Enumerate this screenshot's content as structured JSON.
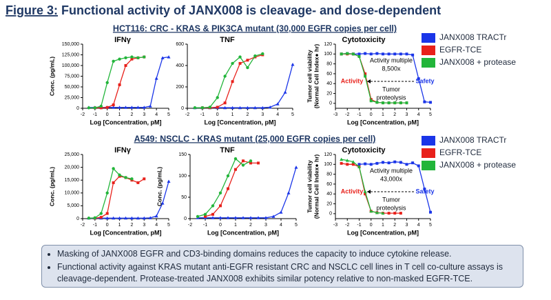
{
  "header": {
    "label": "Figure 3:",
    "title": "Functional activity of JANX008 is cleavage- and dose-dependent"
  },
  "sections": [
    "HCT116: CRC - KRAS & PIK3CA mutant (30,000 EGFR copies per cell)",
    "A549: NSCLC - KRAS mutant (25,000 EGFR copies per cell)"
  ],
  "bullets": [
    "Masking of JANX008 EGFR and CD3-binding domains reduces the capacity to induce cytokine release.",
    "Functional activity against KRAS mutant anti-EGFR resistant CRC and NSCLC cell lines in T cell co-culture assays is cleavage-dependent. Protease-treated JANX008 exhibits similar potency relative to non-masked EGFR-TCE."
  ],
  "chart_data": [
    {
      "type": "line",
      "title": "IFNγ",
      "xlabel": "Log [Concentration, pM]",
      "ylabel": [
        "Conc. (pg/mL)"
      ],
      "xlim": [
        -2,
        5
      ],
      "xticks": [
        -2,
        -1,
        0,
        1,
        2,
        3,
        4,
        5
      ],
      "ylim": [
        0,
        150000
      ],
      "yticks": [
        0,
        {
          "value": 25000,
          "label": "25,000"
        },
        {
          "value": 50000,
          "label": "50,000"
        },
        {
          "value": 75000,
          "label": "75,000"
        },
        {
          "value": 100000,
          "label": "100,000"
        },
        {
          "value": 125000,
          "label": "125,000"
        },
        {
          "value": 150000,
          "label": "150,000"
        }
      ],
      "x": [
        -1.5,
        -1,
        -0.5,
        0,
        0.5,
        1,
        1.5,
        2,
        2.5,
        3,
        3.5,
        4,
        4.5,
        5
      ],
      "series": [
        {
          "color": "#1a35e8",
          "marker": "triangle",
          "values": [
            2000,
            2000,
            2000,
            2000,
            2000,
            2000,
            2000,
            2000,
            2000,
            2000,
            5000,
            70000,
            118000,
            120000
          ]
        },
        {
          "color": "#e8201a",
          "marker": "square",
          "values": [
            null,
            1000,
            1000,
            2000,
            8000,
            55000,
            100000,
            115000,
            118000,
            120000,
            null,
            null,
            null,
            null
          ]
        },
        {
          "color": "#22b53a",
          "marker": "circle",
          "values": [
            1000,
            1000,
            5000,
            60000,
            110000,
            115000,
            118000,
            120000,
            118000,
            120000,
            null,
            null,
            null,
            null
          ]
        }
      ]
    },
    {
      "type": "line",
      "title": "TNF",
      "xlabel": "Log [Concentration, pM]",
      "ylabel": [],
      "xlim": [
        -2,
        5
      ],
      "xticks": [
        -2,
        -1,
        0,
        1,
        2,
        3,
        4,
        5
      ],
      "ylim": [
        0,
        600
      ],
      "yticks": [
        0,
        200,
        400,
        600
      ],
      "x": [
        -1.5,
        -1,
        -0.5,
        0,
        0.5,
        1,
        1.5,
        2,
        2.5,
        3,
        3.5,
        4,
        4.5,
        5
      ],
      "series": [
        {
          "color": "#1a35e8",
          "marker": "triangle",
          "values": [
            5,
            5,
            5,
            5,
            5,
            5,
            5,
            5,
            5,
            5,
            10,
            40,
            150,
            410
          ]
        },
        {
          "color": "#e8201a",
          "marker": "square",
          "values": [
            null,
            5,
            5,
            10,
            50,
            250,
            420,
            450,
            480,
            500,
            null,
            null,
            null,
            null
          ]
        },
        {
          "color": "#22b53a",
          "marker": "circle",
          "values": [
            5,
            5,
            10,
            100,
            300,
            420,
            480,
            380,
            490,
            510,
            null,
            null,
            null,
            null
          ]
        }
      ]
    },
    {
      "type": "line",
      "title": "Cytotoxicity",
      "xlabel": "Log [Concentration, pM]",
      "ylabel": [
        "Tumor cell viability",
        "(Normal Cell Index● hr)"
      ],
      "xlim": [
        -3,
        5
      ],
      "xticks": [
        -3,
        -2,
        -1,
        0,
        1,
        2,
        3,
        4,
        5
      ],
      "ylim": [
        -10,
        120
      ],
      "yticks": [
        0,
        20,
        40,
        60,
        80,
        100,
        120
      ],
      "x": [
        -2.5,
        -2,
        -1.5,
        -1,
        -0.5,
        0,
        0.5,
        1,
        1.5,
        2,
        2.5,
        3,
        3.5,
        4,
        4.5,
        5
      ],
      "series": [
        {
          "name": "JANX008 TRACTr",
          "color": "#1a35e8",
          "marker": "square",
          "values": [
            100,
            101,
            100,
            100,
            101,
            100,
            101,
            100,
            100,
            100,
            100,
            100,
            98,
            50,
            3,
            2
          ]
        },
        {
          "name": "EGFR-TCE",
          "color": "#e8201a",
          "marker": "square",
          "values": [
            100,
            100,
            100,
            95,
            60,
            8,
            2,
            1,
            1,
            1,
            1,
            1,
            null,
            null,
            null,
            null
          ]
        },
        {
          "name": "JANX008 + protease",
          "color": "#22b53a",
          "marker": "square",
          "values": [
            100,
            101,
            100,
            95,
            55,
            5,
            2,
            1,
            1,
            1,
            1,
            1,
            null,
            null,
            null,
            null
          ]
        }
      ],
      "annotations": [
        {
          "text": "Activity",
          "color": "#e8201a"
        },
        {
          "text": "Safety",
          "color": "#1a35e8"
        },
        {
          "text": "Activity multiple",
          "color": "#000000"
        },
        {
          "text": "8,500x",
          "color": "#000000"
        },
        {
          "text": "Tumor",
          "color": "#000000"
        },
        {
          "text": "proteolysis",
          "color": "#000000"
        }
      ]
    },
    {
      "type": "line",
      "title": "IFNγ",
      "xlabel": "Log [Concentration, pM]",
      "ylabel": [
        "Conc. (pg/mL)"
      ],
      "xlim": [
        -2,
        5
      ],
      "xticks": [
        -2,
        -1,
        0,
        1,
        2,
        3,
        4,
        5
      ],
      "ylim": [
        0,
        25000
      ],
      "yticks": [
        0,
        {
          "value": 5000,
          "label": "5,000"
        },
        {
          "value": 10000,
          "label": "10,000"
        },
        {
          "value": 15000,
          "label": "15,000"
        },
        {
          "value": 20000,
          "label": "20,000"
        },
        {
          "value": 25000,
          "label": "25,000"
        }
      ],
      "x": [
        -1.5,
        -1,
        -0.5,
        0,
        0.5,
        1,
        1.5,
        2,
        2.5,
        3,
        3.5,
        4,
        4.5,
        5
      ],
      "series": [
        {
          "color": "#1a35e8",
          "marker": "triangle",
          "values": [
            200,
            200,
            200,
            200,
            200,
            200,
            200,
            200,
            200,
            200,
            300,
            1000,
            6000,
            14500
          ]
        },
        {
          "color": "#e8201a",
          "marker": "square",
          "values": [
            null,
            200,
            500,
            2000,
            14000,
            16500,
            16000,
            15000,
            14000,
            15500,
            null,
            null,
            null,
            null
          ]
        },
        {
          "color": "#22b53a",
          "marker": "circle",
          "values": [
            200,
            300,
            2000,
            10000,
            19500,
            17000,
            16000,
            15500,
            null,
            null,
            null,
            null,
            null,
            null
          ]
        }
      ]
    },
    {
      "type": "line",
      "title": "TNF",
      "xlabel": "Log [Concentration, pM]",
      "ylabel": [
        "Conc. (pg/mL)"
      ],
      "xlim": [
        -2,
        5
      ],
      "xticks": [
        -2,
        -1,
        0,
        1,
        2,
        3,
        4,
        5
      ],
      "ylim": [
        0,
        150
      ],
      "yticks": [
        0,
        50,
        100,
        150
      ],
      "x": [
        -1.5,
        -1,
        -0.5,
        0,
        0.5,
        1,
        1.5,
        2,
        2.5,
        3,
        3.5,
        4,
        4.5,
        5
      ],
      "series": [
        {
          "color": "#1a35e8",
          "marker": "triangle",
          "values": [
            2,
            2,
            2,
            2,
            2,
            2,
            2,
            2,
            2,
            2,
            5,
            15,
            60,
            120
          ]
        },
        {
          "color": "#e8201a",
          "marker": "square",
          "values": [
            null,
            5,
            10,
            30,
            70,
            115,
            135,
            130,
            130,
            null,
            null,
            null,
            null,
            null
          ]
        },
        {
          "color": "#22b53a",
          "marker": "circle",
          "values": [
            5,
            10,
            30,
            60,
            100,
            140,
            125,
            135,
            null,
            null,
            null,
            null,
            null,
            null
          ]
        }
      ]
    },
    {
      "type": "line",
      "title": "Cytotoxicity",
      "xlabel": "Log [Concentration, pM]",
      "ylabel": [
        "Tumor cell viability",
        "(Normal Cell Index● hr)"
      ],
      "xlim": [
        -3,
        5
      ],
      "xticks": [
        -3,
        -2,
        -1,
        0,
        1,
        2,
        3,
        4,
        5
      ],
      "ylim": [
        -10,
        120
      ],
      "yticks": [
        0,
        20,
        40,
        60,
        80,
        100,
        120
      ],
      "x": [
        -2.5,
        -2,
        -1.5,
        -1,
        -0.5,
        0,
        0.5,
        1,
        1.5,
        2,
        2.5,
        3,
        3.5,
        4,
        4.5,
        5
      ],
      "series": [
        {
          "name": "JANX008 TRACTr",
          "color": "#1a35e8",
          "marker": "square",
          "values": [
            null,
            null,
            null,
            100,
            101,
            100,
            102,
            104,
            103,
            105,
            104,
            100,
            103,
            97,
            50,
            3
          ]
        },
        {
          "name": "EGFR-TCE",
          "color": "#e8201a",
          "marker": "square",
          "values": [
            102,
            100,
            100,
            95,
            40,
            5,
            2,
            1,
            1,
            1,
            1,
            null,
            null,
            null,
            null,
            null
          ]
        },
        {
          "name": "JANX008 + protease",
          "color": "#22b53a",
          "marker": "triangle",
          "values": [
            110,
            108,
            105,
            95,
            45,
            5,
            2,
            1,
            null,
            null,
            null,
            null,
            null,
            null,
            null,
            null
          ]
        }
      ],
      "annotations": [
        {
          "text": "Activity",
          "color": "#e8201a"
        },
        {
          "text": "Safety",
          "color": "#1a35e8"
        },
        {
          "text": "Activity multiple",
          "color": "#000000"
        },
        {
          "text": "43,000x",
          "color": "#000000"
        },
        {
          "text": "Tumor",
          "color": "#000000"
        },
        {
          "text": "proteolysis",
          "color": "#000000"
        }
      ]
    }
  ]
}
